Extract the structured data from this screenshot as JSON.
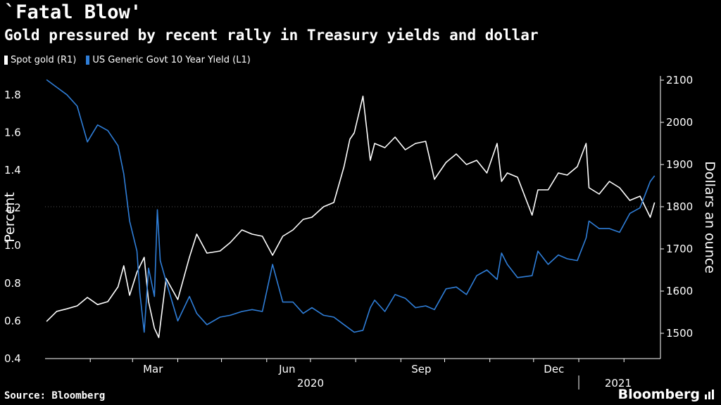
{
  "title": "`Fatal Blow'",
  "subtitle": "Gold pressured by recent rally in Treasury yields and dollar",
  "source": "Source: Bloomberg",
  "brand": "Bloomberg",
  "colors": {
    "background": "#000000",
    "gold": "#ffffff",
    "yield": "#2f7ed8",
    "grid": "#3a3a3a"
  },
  "chart_data": {
    "type": "line",
    "title": "`Fatal Blow'",
    "subtitle": "Gold pressured by recent rally in Treasury yields and dollar",
    "left_axis": {
      "label": "Percent",
      "range": [
        0.4,
        1.9
      ],
      "ticks": [
        "0.4",
        "0.6",
        "0.8",
        "1.0",
        "1.2",
        "1.4",
        "1.6",
        "1.8"
      ]
    },
    "right_axis": {
      "label": "Dollars an ounce",
      "range": [
        1440,
        2110
      ],
      "ticks": [
        "1500",
        "1600",
        "1700",
        "1800",
        "1900",
        "2000",
        "2100"
      ]
    },
    "x_ticks": [
      "Mar",
      "Jun",
      "Sep",
      "Dec"
    ],
    "year_labels": [
      "2020",
      "2021"
    ],
    "grid": false,
    "legend_position": "top-left",
    "series": [
      {
        "name": "Spot gold (R1)",
        "axis": "right",
        "color": "#ffffff",
        "x": [
          "2020-01-02",
          "2020-01-09",
          "2020-01-16",
          "2020-01-23",
          "2020-01-30",
          "2020-02-06",
          "2020-02-13",
          "2020-02-20",
          "2020-02-24",
          "2020-02-28",
          "2020-03-04",
          "2020-03-09",
          "2020-03-12",
          "2020-03-16",
          "2020-03-19",
          "2020-03-24",
          "2020-04-01",
          "2020-04-09",
          "2020-04-14",
          "2020-04-21",
          "2020-04-30",
          "2020-05-07",
          "2020-05-15",
          "2020-05-22",
          "2020-05-29",
          "2020-06-05",
          "2020-06-12",
          "2020-06-19",
          "2020-06-26",
          "2020-07-02",
          "2020-07-10",
          "2020-07-17",
          "2020-07-24",
          "2020-07-28",
          "2020-07-31",
          "2020-08-06",
          "2020-08-11",
          "2020-08-14",
          "2020-08-21",
          "2020-08-28",
          "2020-09-04",
          "2020-09-11",
          "2020-09-18",
          "2020-09-24",
          "2020-10-02",
          "2020-10-09",
          "2020-10-16",
          "2020-10-23",
          "2020-10-30",
          "2020-11-06",
          "2020-11-09",
          "2020-11-13",
          "2020-11-20",
          "2020-11-30",
          "2020-12-04",
          "2020-12-11",
          "2020-12-18",
          "2020-12-24",
          "2020-12-31",
          "2021-01-06",
          "2021-01-08",
          "2021-01-15",
          "2021-01-22",
          "2021-01-29",
          "2021-02-05",
          "2021-02-12",
          "2021-02-19",
          "2021-02-22"
        ],
        "values": [
          1528,
          1552,
          1558,
          1565,
          1585,
          1568,
          1575,
          1610,
          1660,
          1590,
          1645,
          1680,
          1575,
          1512,
          1490,
          1630,
          1580,
          1680,
          1735,
          1690,
          1695,
          1715,
          1745,
          1735,
          1730,
          1685,
          1730,
          1745,
          1770,
          1775,
          1800,
          1810,
          1895,
          1960,
          1975,
          2062,
          1910,
          1950,
          1940,
          1965,
          1935,
          1950,
          1955,
          1865,
          1905,
          1925,
          1900,
          1910,
          1880,
          1950,
          1860,
          1880,
          1870,
          1780,
          1840,
          1840,
          1880,
          1875,
          1895,
          1950,
          1845,
          1830,
          1860,
          1845,
          1815,
          1825,
          1775,
          1810
        ]
      },
      {
        "name": "US Generic Govt 10 Year Yield  (L1)",
        "axis": "left",
        "color": "#2f7ed8",
        "x": [
          "2020-01-02",
          "2020-01-09",
          "2020-01-16",
          "2020-01-23",
          "2020-01-30",
          "2020-02-06",
          "2020-02-13",
          "2020-02-20",
          "2020-02-24",
          "2020-02-28",
          "2020-03-04",
          "2020-03-06",
          "2020-03-09",
          "2020-03-12",
          "2020-03-16",
          "2020-03-18",
          "2020-03-20",
          "2020-03-24",
          "2020-04-01",
          "2020-04-09",
          "2020-04-14",
          "2020-04-21",
          "2020-04-30",
          "2020-05-07",
          "2020-05-15",
          "2020-05-22",
          "2020-05-29",
          "2020-06-05",
          "2020-06-12",
          "2020-06-19",
          "2020-06-26",
          "2020-07-02",
          "2020-07-10",
          "2020-07-17",
          "2020-07-24",
          "2020-07-31",
          "2020-08-06",
          "2020-08-11",
          "2020-08-14",
          "2020-08-21",
          "2020-08-28",
          "2020-09-04",
          "2020-09-11",
          "2020-09-18",
          "2020-09-24",
          "2020-10-02",
          "2020-10-09",
          "2020-10-16",
          "2020-10-23",
          "2020-10-30",
          "2020-11-06",
          "2020-11-09",
          "2020-11-13",
          "2020-11-20",
          "2020-11-30",
          "2020-12-04",
          "2020-12-11",
          "2020-12-18",
          "2020-12-24",
          "2020-12-31",
          "2021-01-06",
          "2021-01-08",
          "2021-01-15",
          "2021-01-22",
          "2021-01-29",
          "2021-02-05",
          "2021-02-12",
          "2021-02-19",
          "2021-02-22"
        ],
        "values": [
          1.88,
          1.84,
          1.8,
          1.74,
          1.55,
          1.64,
          1.61,
          1.53,
          1.38,
          1.13,
          0.97,
          0.75,
          0.54,
          0.88,
          0.73,
          1.19,
          0.92,
          0.81,
          0.6,
          0.73,
          0.64,
          0.58,
          0.62,
          0.63,
          0.65,
          0.66,
          0.65,
          0.9,
          0.7,
          0.7,
          0.64,
          0.67,
          0.63,
          0.62,
          0.58,
          0.54,
          0.55,
          0.67,
          0.71,
          0.65,
          0.74,
          0.72,
          0.67,
          0.68,
          0.66,
          0.77,
          0.78,
          0.74,
          0.84,
          0.87,
          0.82,
          0.96,
          0.9,
          0.83,
          0.84,
          0.97,
          0.9,
          0.95,
          0.93,
          0.92,
          1.04,
          1.13,
          1.09,
          1.09,
          1.07,
          1.17,
          1.2,
          1.34,
          1.37
        ]
      }
    ]
  }
}
